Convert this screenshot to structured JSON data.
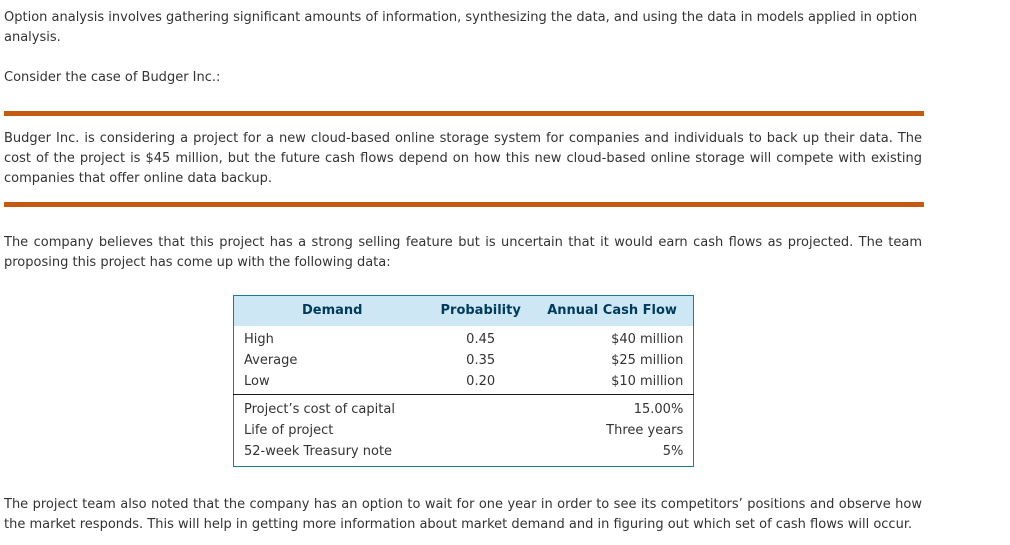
{
  "page": {
    "intro": "Option analysis involves gathering significant amounts of information, synthesizing the data, and using the data in models applied in option analysis.",
    "consider": "Consider the case of Budger Inc.:",
    "case_description": "Budger Inc. is considering a project for a new cloud-based online storage system for companies and individuals to back up their data. The cost of the project is $45 million, but the future cash flows depend on how this new cloud-based online storage will compete with existing companies that offer online data backup.",
    "belief": "The company believes that this project has a strong selling feature but is uncertain that it would earn cash flows as projected. The team proposing this project has come up with the following data:",
    "closing": "The project team also noted that the company has an option to wait for one year in order to see its competitors’ positions and observe how the market responds. This will help in getting more information about market demand and in figuring out which set of cash flows will occur."
  },
  "table": {
    "headers": [
      "Demand",
      "Probability",
      "Annual Cash Flow"
    ],
    "rows": [
      {
        "demand": "High",
        "probability": "0.45",
        "cash_flow": "$40 million"
      },
      {
        "demand": "Average",
        "probability": "0.35",
        "cash_flow": "$25 million"
      },
      {
        "demand": "Low",
        "probability": "0.20",
        "cash_flow": "$10 million"
      }
    ],
    "params": [
      {
        "label": "Project’s cost of capital",
        "value": "15.00%"
      },
      {
        "label": "Life of project",
        "value": "Three years"
      },
      {
        "label": "52-week Treasury note",
        "value": "5%"
      }
    ]
  },
  "colors": {
    "divider": "#c55a11",
    "table_border": "#1b7a96",
    "header_bg": "#cde7f4",
    "header_text": "#003b5c",
    "text": "#333333"
  }
}
